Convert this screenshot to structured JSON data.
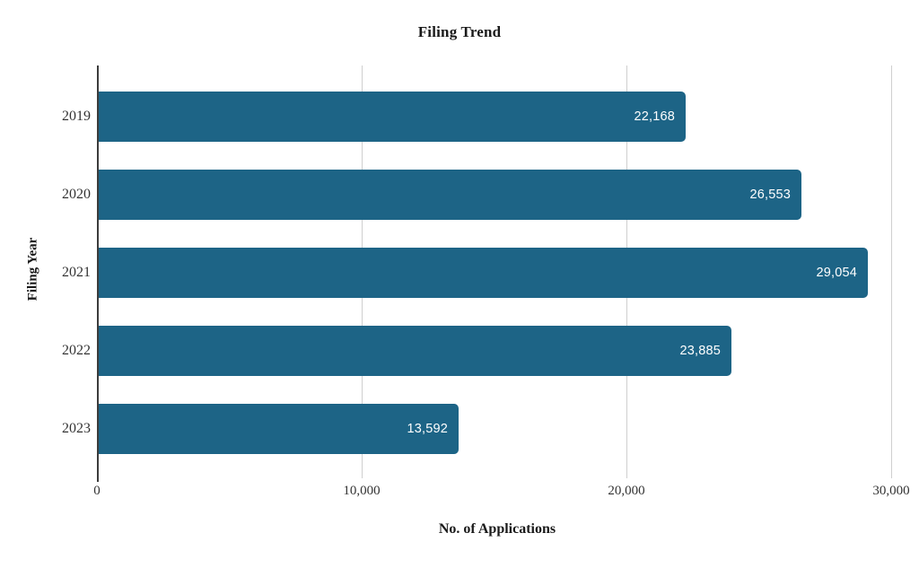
{
  "chart_data": {
    "type": "bar",
    "orientation": "horizontal",
    "title": "Filing Trend",
    "xlabel": "No. of Applications",
    "ylabel": "Filing Year",
    "categories": [
      "2019",
      "2020",
      "2021",
      "2022",
      "2023"
    ],
    "values": [
      22168,
      26553,
      29054,
      23885,
      13592
    ],
    "value_labels": [
      "22,168",
      "26,553",
      "29,054",
      "23,885",
      "13,592"
    ],
    "xticks": [
      {
        "value": 0,
        "label": "0"
      },
      {
        "value": 10000,
        "label": "10,000"
      },
      {
        "value": 20000,
        "label": "20,000"
      },
      {
        "value": 30000,
        "label": "30,000"
      }
    ],
    "xlim": [
      0,
      30240
    ],
    "grid": true,
    "legend": "none",
    "bar_color": "#1d6486",
    "value_label_color": "#ffffff",
    "gridline_color": "#cfcfcf",
    "axis_line_color": "#3c3c3c"
  }
}
